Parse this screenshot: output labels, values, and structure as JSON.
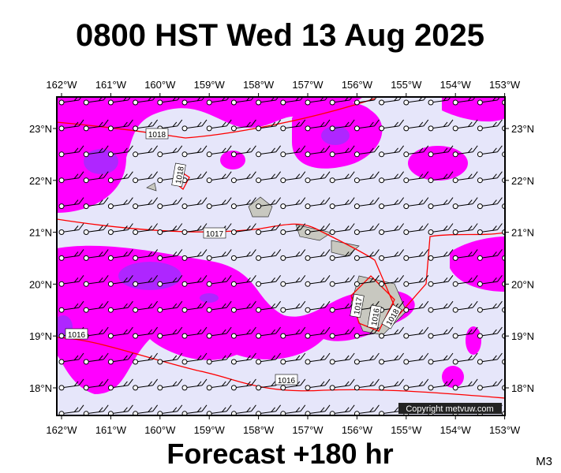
{
  "title": "0800 HST Wed 13 Aug 2025",
  "footer": "Forecast +180 hr",
  "corner_label": "M3",
  "copyright": "Copyright metvuw.com",
  "longitude_labels": [
    "162°W",
    "161°W",
    "160°W",
    "159°W",
    "158°W",
    "157°W",
    "156°W",
    "155°W",
    "154°W",
    "153°W"
  ],
  "latitude_labels": [
    "23°N",
    "22°N",
    "21°N",
    "20°N",
    "19°N",
    "18°N"
  ],
  "isobar_labels": [
    "1018",
    "1018",
    "1017",
    "1016",
    "1016",
    "1017",
    "1016",
    "1018"
  ]
}
